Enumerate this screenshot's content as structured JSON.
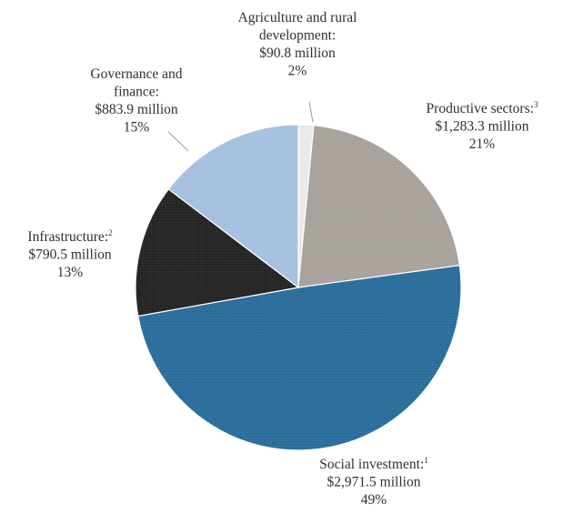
{
  "chart_data": {
    "type": "pie",
    "slices": [
      {
        "name": "Agriculture and rural development",
        "value": 90.8,
        "percent": 2,
        "label_lines": [
          "Agriculture and rural",
          "development:",
          "$90.8 million",
          "2%"
        ],
        "footnote": "",
        "color": "#ececec"
      },
      {
        "name": "Productive sectors",
        "value": 1283.3,
        "percent": 21,
        "label_lines": [
          "Productive sectors:",
          "$1,283.3 million",
          "21%"
        ],
        "footnote": "3",
        "color": "#aba49f"
      },
      {
        "name": "Social investment",
        "value": 2971.5,
        "percent": 49,
        "label_lines": [
          "Social investment:",
          "$2,971.5 million",
          "49%"
        ],
        "footnote": "1",
        "color": "#2b6d9c"
      },
      {
        "name": "Infrastructure",
        "value": 790.5,
        "percent": 13,
        "label_lines": [
          "Infrastructure:",
          "$790.5 million",
          "13%"
        ],
        "footnote": "2",
        "color": "#252525"
      },
      {
        "name": "Governance and finance",
        "value": 883.9,
        "percent": 15,
        "label_lines": [
          "Governance and",
          "finance:",
          "$883.9 million",
          "15%"
        ],
        "footnote": "",
        "color": "#a9c4e3"
      }
    ],
    "start_angle_deg": 0,
    "direction": "clockwise"
  }
}
